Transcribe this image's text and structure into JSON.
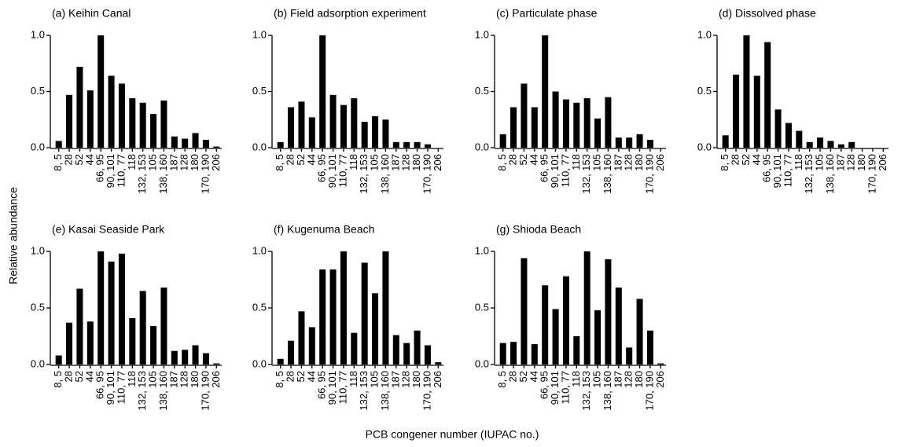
{
  "ylabel": "Relative abundance",
  "xlabel": "PCB congener number (IUPAC no.)",
  "chart_data": [
    {
      "type": "bar",
      "title": "(a) Keihin Canal",
      "color": "#000000",
      "categories": [
        "8, 5",
        "28",
        "52",
        "44",
        "66, 95",
        "90, 101",
        "110, 77",
        "118",
        "132, 153",
        "105",
        "138, 160",
        "187",
        "128",
        "180",
        "170, 190",
        "206"
      ],
      "values": [
        0.06,
        0.47,
        0.72,
        0.51,
        1.0,
        0.64,
        0.57,
        0.44,
        0.4,
        0.3,
        0.42,
        0.1,
        0.08,
        0.13,
        0.07,
        0.01
      ],
      "ylim": [
        0,
        1
      ],
      "yticks": [
        {
          "value": 0,
          "label": "0.0"
        },
        {
          "value": 0.5,
          "label": "0.5"
        },
        {
          "value": 1,
          "label": "1.0"
        }
      ]
    },
    {
      "type": "bar",
      "title": "(b) Field adsorption experiment",
      "color": "#000000",
      "categories": [
        "8, 5",
        "28",
        "52",
        "44",
        "66, 95",
        "90, 101",
        "110, 77",
        "118",
        "132, 153",
        "105",
        "138, 160",
        "187",
        "128",
        "180",
        "170, 190",
        "206"
      ],
      "values": [
        0.05,
        0.36,
        0.41,
        0.27,
        1.0,
        0.47,
        0.38,
        0.44,
        0.23,
        0.28,
        0.25,
        0.05,
        0.05,
        0.05,
        0.03,
        0.0
      ],
      "ylim": [
        0,
        1
      ],
      "yticks": [
        {
          "value": 0,
          "label": "0.0"
        },
        {
          "value": 0.5,
          "label": "0.5"
        },
        {
          "value": 1,
          "label": "1.0"
        }
      ]
    },
    {
      "type": "bar",
      "title": "(c) Particulate phase",
      "color": "#000000",
      "categories": [
        "8, 5",
        "28",
        "52",
        "44",
        "66, 95",
        "90, 101",
        "110, 77",
        "118",
        "132, 153",
        "105",
        "138, 160",
        "187",
        "128",
        "180",
        "170, 190",
        "206"
      ],
      "values": [
        0.12,
        0.36,
        0.57,
        0.36,
        1.0,
        0.5,
        0.43,
        0.4,
        0.44,
        0.26,
        0.45,
        0.09,
        0.09,
        0.12,
        0.07,
        0.0
      ],
      "ylim": [
        0,
        1
      ],
      "yticks": [
        {
          "value": 0,
          "label": "0.0"
        },
        {
          "value": 0.5,
          "label": "0.5"
        },
        {
          "value": 1,
          "label": "1.0"
        }
      ]
    },
    {
      "type": "bar",
      "title": "(d) Dissolved phase",
      "color": "#000000",
      "categories": [
        "8, 5",
        "28",
        "52",
        "44",
        "66, 95",
        "90, 101",
        "110, 77",
        "118",
        "132, 153",
        "105",
        "138, 160",
        "187",
        "128",
        "180",
        "170, 190",
        "206"
      ],
      "values": [
        0.11,
        0.65,
        1.0,
        0.64,
        0.94,
        0.34,
        0.22,
        0.15,
        0.05,
        0.09,
        0.06,
        0.03,
        0.05,
        0.0,
        0.0,
        0.0
      ],
      "ylim": [
        0,
        1
      ],
      "yticks": [
        {
          "value": 0,
          "label": "0.0"
        },
        {
          "value": 0.5,
          "label": "0.5"
        },
        {
          "value": 1,
          "label": "1.0"
        }
      ]
    },
    {
      "type": "bar",
      "title": "(e) Kasai Seaside Park",
      "color": "#000000",
      "categories": [
        "8, 5",
        "28",
        "52",
        "44",
        "66, 95",
        "90, 101",
        "110, 77",
        "118",
        "132, 153",
        "105",
        "138, 160",
        "187",
        "128",
        "180",
        "170, 190",
        "206"
      ],
      "values": [
        0.08,
        0.37,
        0.67,
        0.38,
        1.0,
        0.91,
        0.98,
        0.41,
        0.65,
        0.34,
        0.68,
        0.12,
        0.13,
        0.17,
        0.1,
        0.01
      ],
      "ylim": [
        0,
        1
      ],
      "yticks": [
        {
          "value": 0,
          "label": "0.0"
        },
        {
          "value": 0.5,
          "label": "0.5"
        },
        {
          "value": 1,
          "label": "1.0"
        }
      ]
    },
    {
      "type": "bar",
      "title": "(f) Kugenuma Beach",
      "color": "#000000",
      "categories": [
        "8, 5",
        "28",
        "52",
        "44",
        "66, 95",
        "90, 101",
        "110, 77",
        "118",
        "132, 153",
        "105",
        "138, 160",
        "187",
        "128",
        "180",
        "170, 190",
        "206"
      ],
      "values": [
        0.05,
        0.21,
        0.47,
        0.33,
        0.84,
        0.84,
        1.0,
        0.28,
        0.9,
        0.63,
        1.0,
        0.26,
        0.19,
        0.3,
        0.17,
        0.02
      ],
      "ylim": [
        0,
        1
      ],
      "yticks": [
        {
          "value": 0,
          "label": "0.0"
        },
        {
          "value": 0.5,
          "label": "0.5"
        },
        {
          "value": 1,
          "label": "1.0"
        }
      ]
    },
    {
      "type": "bar",
      "title": "(g) Shioda Beach",
      "color": "#000000",
      "categories": [
        "8, 5",
        "28",
        "52",
        "44",
        "66, 95",
        "90, 101",
        "110, 77",
        "118",
        "132, 153",
        "105",
        "138, 160",
        "187",
        "128",
        "180",
        "170, 190",
        "206"
      ],
      "values": [
        0.19,
        0.2,
        0.94,
        0.18,
        0.7,
        0.49,
        0.78,
        0.25,
        1.0,
        0.48,
        0.93,
        0.68,
        0.15,
        0.58,
        0.3,
        0.01
      ],
      "ylim": [
        0,
        1
      ],
      "yticks": [
        {
          "value": 0,
          "label": "0.0"
        },
        {
          "value": 0.5,
          "label": "0.5"
        },
        {
          "value": 1,
          "label": "1.0"
        }
      ]
    }
  ]
}
